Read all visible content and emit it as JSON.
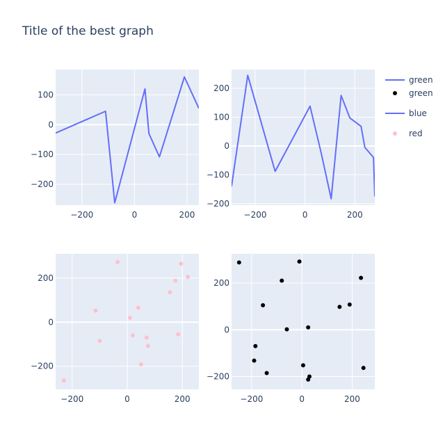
{
  "title": "Title of the best graph",
  "colors": {
    "plot_bg": "#e5ecf6",
    "grid": "#ffffff",
    "line": "#636efa",
    "text": "#2a3f5f"
  },
  "legend": [
    {
      "label": "green",
      "kind": "line",
      "color": "#636efa"
    },
    {
      "label": "green",
      "kind": "marker",
      "color": "#000000"
    },
    {
      "label": "blue",
      "kind": "line",
      "color": "#636efa"
    },
    {
      "label": "red",
      "kind": "marker",
      "color": "#ffc0cb"
    }
  ],
  "chart_data": [
    {
      "type": "line",
      "name": "green",
      "color": "#636efa",
      "xlim": [
        -300,
        245
      ],
      "ylim": [
        -270,
        185
      ],
      "xticks": [
        -200,
        0,
        200
      ],
      "yticks": [
        -200,
        -100,
        0,
        100
      ],
      "points": [
        [
          -300,
          -28
        ],
        [
          -110,
          45
        ],
        [
          -75,
          -262
        ],
        [
          40,
          120
        ],
        [
          55,
          -30
        ],
        [
          95,
          -108
        ],
        [
          190,
          160
        ],
        [
          245,
          55
        ]
      ]
    },
    {
      "type": "line",
      "name": "blue",
      "color": "#636efa",
      "xlim": [
        -295,
        280
      ],
      "ylim": [
        -205,
        265
      ],
      "xticks": [
        -200,
        0,
        200
      ],
      "yticks": [
        -200,
        -100,
        0,
        100,
        200
      ],
      "points": [
        [
          -295,
          -140
        ],
        [
          -230,
          245
        ],
        [
          -120,
          -88
        ],
        [
          20,
          138
        ],
        [
          65,
          -25
        ],
        [
          105,
          -183
        ],
        [
          145,
          175
        ],
        [
          180,
          97
        ],
        [
          225,
          68
        ],
        [
          240,
          -5
        ],
        [
          275,
          -40
        ],
        [
          280,
          -175
        ]
      ]
    },
    {
      "type": "scatter",
      "name": "red",
      "color": "#ffc0cb",
      "xlim": [
        -260,
        260
      ],
      "ylim": [
        -305,
        310
      ],
      "xticks": [
        -200,
        0,
        200
      ],
      "yticks": [
        -200,
        0,
        200
      ],
      "points": [
        [
          -230,
          -265
        ],
        [
          -35,
          272
        ],
        [
          195,
          265
        ],
        [
          220,
          205
        ],
        [
          175,
          188
        ],
        [
          155,
          135
        ],
        [
          -115,
          52
        ],
        [
          40,
          65
        ],
        [
          10,
          20
        ],
        [
          -100,
          -85
        ],
        [
          20,
          -60
        ],
        [
          70,
          -70
        ],
        [
          75,
          -108
        ],
        [
          185,
          -55
        ],
        [
          50,
          -192
        ]
      ]
    },
    {
      "type": "scatter",
      "name": "green",
      "color": "#000000",
      "xlim": [
        -280,
        290
      ],
      "ylim": [
        -255,
        325
      ],
      "xticks": [
        -200,
        0,
        200
      ],
      "yticks": [
        -200,
        0,
        200
      ],
      "points": [
        [
          -250,
          288
        ],
        [
          -10,
          292
        ],
        [
          -80,
          210
        ],
        [
          235,
          222
        ],
        [
          -155,
          105
        ],
        [
          150,
          98
        ],
        [
          190,
          108
        ],
        [
          -60,
          2
        ],
        [
          25,
          10
        ],
        [
          -185,
          -70
        ],
        [
          -190,
          -132
        ],
        [
          -140,
          -185
        ],
        [
          5,
          -152
        ],
        [
          30,
          -200
        ],
        [
          25,
          -213
        ],
        [
          245,
          -163
        ]
      ]
    }
  ]
}
